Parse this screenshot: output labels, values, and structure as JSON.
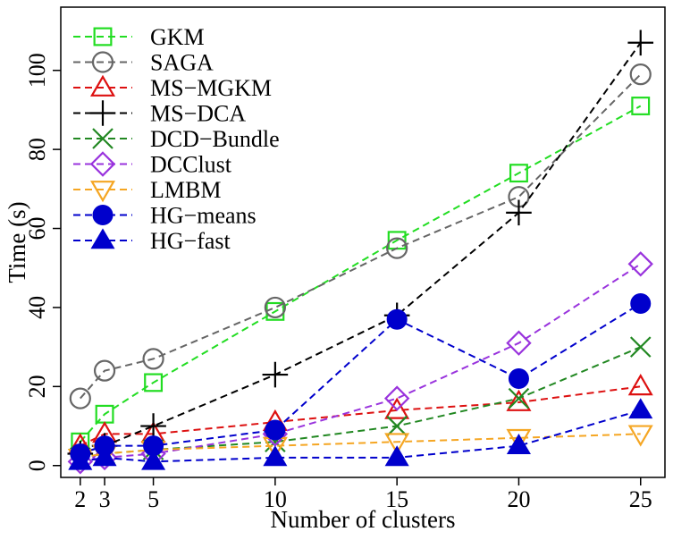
{
  "chart_data": {
    "type": "line",
    "title": "",
    "xlabel": "Number of clusters",
    "ylabel": "Time (s)",
    "x": [
      2,
      3,
      5,
      10,
      15,
      20,
      25
    ],
    "xlim": [
      1.2,
      26.0
    ],
    "ylim": [
      -3,
      116
    ],
    "xticks": [
      2,
      3,
      5,
      10,
      15,
      20,
      25
    ],
    "yticks": [
      0,
      20,
      40,
      60,
      80,
      100
    ],
    "grid": false,
    "legend_position": "top-left",
    "series": [
      {
        "name": "GKM",
        "color": "#22dd22",
        "marker": "open-square",
        "values": [
          6,
          13,
          21,
          39,
          57,
          74,
          91
        ]
      },
      {
        "name": "SAGA",
        "color": "#666666",
        "marker": "open-circle",
        "values": [
          17,
          24,
          27,
          40,
          55,
          68,
          99
        ]
      },
      {
        "name": "MS−MGKM",
        "color": "#dd1111",
        "marker": "open-triangle-up",
        "values": [
          5,
          8,
          8,
          11,
          14,
          16,
          20
        ]
      },
      {
        "name": "MS−DCA",
        "color": "#000000",
        "marker": "plus",
        "values": [
          3,
          5,
          10,
          23,
          38,
          64,
          107
        ]
      },
      {
        "name": "DCD−Bundle",
        "color": "#228822",
        "marker": "x",
        "values": [
          2,
          3,
          4,
          6,
          10,
          17,
          30
        ]
      },
      {
        "name": "DCClust",
        "color": "#9933dd",
        "marker": "open-diamond",
        "values": [
          1,
          2,
          3,
          8,
          17,
          31,
          51
        ]
      },
      {
        "name": "LMBM",
        "color": "#f5a623",
        "marker": "open-triangle-down",
        "values": [
          2,
          3,
          4,
          5,
          6,
          7,
          8
        ]
      },
      {
        "name": "HG−means",
        "color": "#0000cc",
        "marker": "filled-circle",
        "values": [
          3,
          5,
          5,
          9,
          37,
          22,
          41
        ]
      },
      {
        "name": "HG−fast",
        "color": "#0000cc",
        "marker": "filled-triangle-up",
        "values": [
          1,
          2,
          1,
          2,
          2,
          5,
          14
        ]
      }
    ]
  }
}
